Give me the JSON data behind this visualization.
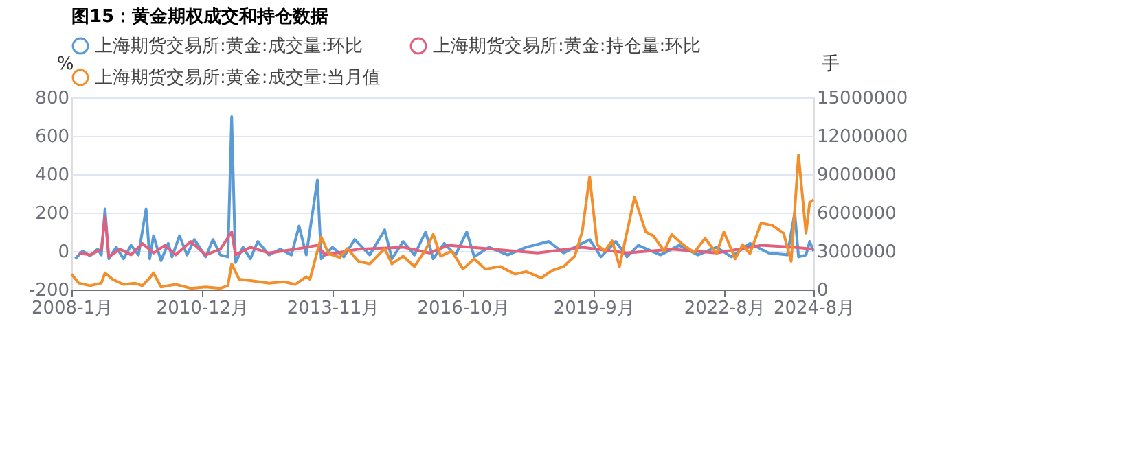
{
  "chart_data": {
    "type": "line",
    "title": "图15：黄金期权成交和持仓数据",
    "ylabel": "%",
    "y2label": "手",
    "xlim": [
      "2008-01",
      "2024-08"
    ],
    "xticks": [
      {
        "value": "2008-01",
        "label": "2008-1月"
      },
      {
        "value": "2010-12",
        "label": "2010-12月"
      },
      {
        "value": "2013-11",
        "label": "2013-11月"
      },
      {
        "value": "2016-10",
        "label": "2016-10月"
      },
      {
        "value": "2019-09",
        "label": "2019-9月"
      },
      {
        "value": "2022-08",
        "label": "2022-8月"
      },
      {
        "value": "2024-08",
        "label": "2024-8月"
      }
    ],
    "ylim": [
      -200,
      800
    ],
    "yticks": [
      -200,
      0,
      200,
      400,
      600,
      800
    ],
    "y2lim": [
      0,
      15000000
    ],
    "y2ticks": [
      0,
      3000000,
      6000000,
      9000000,
      12000000,
      15000000
    ],
    "grid": "y",
    "legend": "top",
    "line_style": "solid",
    "series": [
      {
        "name": "上海期货交易所:黄金:成交量:环比",
        "color": "#5b9bd5",
        "x": [
          "2008-02",
          "2008-04",
          "2008-06",
          "2008-08",
          "2008-09",
          "2008-10",
          "2008-11",
          "2009-01",
          "2009-03",
          "2009-05",
          "2009-07",
          "2009-09",
          "2009-10",
          "2009-11",
          "2010-01",
          "2010-03",
          "2010-04",
          "2010-06",
          "2010-08",
          "2010-10",
          "2011-01",
          "2011-03",
          "2011-05",
          "2011-07",
          "2011-08",
          "2011-09",
          "2011-11",
          "2012-01",
          "2012-03",
          "2012-06",
          "2012-09",
          "2012-12",
          "2013-02",
          "2013-04",
          "2013-07",
          "2013-08",
          "2013-11",
          "2014-02",
          "2014-05",
          "2014-09",
          "2015-01",
          "2015-03",
          "2015-06",
          "2015-09",
          "2015-12",
          "2016-02",
          "2016-05",
          "2016-08",
          "2016-11",
          "2017-01",
          "2017-05",
          "2017-10",
          "2018-03",
          "2018-09",
          "2019-01",
          "2019-08",
          "2019-11",
          "2020-03",
          "2020-06",
          "2020-09",
          "2021-03",
          "2021-08",
          "2022-01",
          "2022-06",
          "2022-10",
          "2023-03",
          "2023-08",
          "2024-01",
          "2024-03",
          "2024-04",
          "2024-06",
          "2024-07",
          "2024-08"
        ],
        "values": [
          -40,
          0,
          -25,
          10,
          -20,
          220,
          -40,
          20,
          -40,
          30,
          -20,
          220,
          -40,
          80,
          -50,
          40,
          -30,
          80,
          -20,
          60,
          -30,
          60,
          -20,
          -30,
          700,
          -60,
          20,
          -40,
          50,
          -20,
          10,
          -20,
          130,
          -20,
          370,
          -40,
          20,
          -30,
          60,
          -20,
          110,
          -40,
          50,
          -20,
          100,
          -40,
          40,
          -20,
          100,
          -30,
          20,
          -20,
          20,
          50,
          -10,
          60,
          -30,
          50,
          -30,
          30,
          -20,
          30,
          -20,
          20,
          -30,
          40,
          -10,
          -20,
          200,
          -30,
          -20,
          50,
          0
        ]
      },
      {
        "name": "上海期货交易所:黄金:持仓量:环比",
        "color": "#e0607e",
        "x": [
          "2008-03",
          "2008-06",
          "2008-09",
          "2008-10",
          "2008-11",
          "2009-02",
          "2009-05",
          "2009-08",
          "2009-11",
          "2010-02",
          "2010-05",
          "2010-09",
          "2011-01",
          "2011-05",
          "2011-08",
          "2011-09",
          "2012-01",
          "2012-06",
          "2013-01",
          "2013-07",
          "2013-09",
          "2014-06",
          "2015-06",
          "2016-01",
          "2016-06",
          "2017-06",
          "2018-06",
          "2019-06",
          "2020-06",
          "2021-06",
          "2022-06",
          "2023-06",
          "2024-03",
          "2024-08"
        ],
        "values": [
          -10,
          -20,
          10,
          180,
          -30,
          10,
          -20,
          40,
          -10,
          30,
          -20,
          50,
          -20,
          10,
          100,
          -20,
          20,
          -10,
          10,
          30,
          -20,
          10,
          20,
          -10,
          30,
          10,
          -10,
          20,
          -10,
          10,
          -10,
          30,
          20,
          10
        ]
      },
      {
        "name": "上海期货交易所:黄金:成交量:当月值",
        "color": "#f28e2b",
        "axis": "y2",
        "x": [
          "2008-01",
          "2008-03",
          "2008-06",
          "2008-09",
          "2008-10",
          "2008-12",
          "2009-03",
          "2009-06",
          "2009-08",
          "2009-10",
          "2009-11",
          "2010-01",
          "2010-05",
          "2010-09",
          "2011-01",
          "2011-05",
          "2011-07",
          "2011-08",
          "2011-10",
          "2012-01",
          "2012-06",
          "2012-10",
          "2013-01",
          "2013-04",
          "2013-05",
          "2013-07",
          "2013-08",
          "2013-10",
          "2014-01",
          "2014-03",
          "2014-06",
          "2014-09",
          "2015-01",
          "2015-03",
          "2015-06",
          "2015-09",
          "2015-12",
          "2016-02",
          "2016-04",
          "2016-07",
          "2016-10",
          "2017-01",
          "2017-04",
          "2017-08",
          "2017-12",
          "2018-03",
          "2018-07",
          "2018-10",
          "2019-01",
          "2019-04",
          "2019-06",
          "2019-08",
          "2019-10",
          "2019-12",
          "2020-02",
          "2020-04",
          "2020-08",
          "2020-11",
          "2021-01",
          "2021-04",
          "2021-06",
          "2021-09",
          "2021-12",
          "2022-03",
          "2022-06",
          "2022-08",
          "2022-11",
          "2023-01",
          "2023-03",
          "2023-06",
          "2023-09",
          "2023-12",
          "2024-02",
          "2024-04",
          "2024-06",
          "2024-07",
          "2024-08"
        ],
        "values": [
          1200000,
          500000,
          300000,
          500000,
          1300000,
          800000,
          400000,
          500000,
          300000,
          900000,
          1300000,
          200000,
          400000,
          100000,
          200000,
          100000,
          300000,
          2000000,
          800000,
          700000,
          500000,
          600000,
          400000,
          1000000,
          800000,
          3000000,
          4100000,
          2800000,
          2500000,
          3200000,
          2200000,
          2000000,
          3200000,
          2000000,
          2600000,
          1800000,
          3100000,
          4300000,
          2600000,
          3000000,
          1600000,
          2400000,
          1600000,
          1800000,
          1200000,
          1400000,
          900000,
          1500000,
          1800000,
          2600000,
          4500000,
          8800000,
          3500000,
          3000000,
          3800000,
          1800000,
          7200000,
          4500000,
          4200000,
          3000000,
          4300000,
          3500000,
          2900000,
          4000000,
          2800000,
          4500000,
          2400000,
          3500000,
          2800000,
          5200000,
          5000000,
          4400000,
          2200000,
          10500000,
          4400000,
          6800000,
          7000000
        ]
      }
    ]
  }
}
